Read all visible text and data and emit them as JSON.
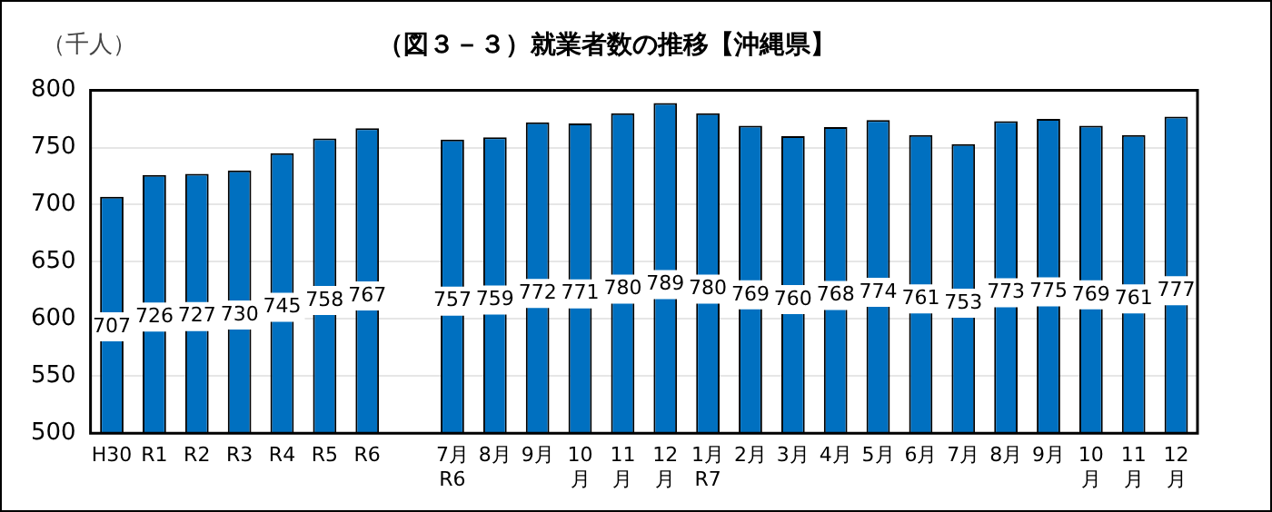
{
  "chart_data": {
    "type": "bar",
    "title": "（図３－３）就業者数の推移【沖縄県】",
    "ylabel": "（千人）",
    "categories": [
      "H30",
      "R1",
      "R2",
      "R3",
      "R4",
      "R5",
      "R6",
      null,
      "7月\nR6",
      "8月",
      "9月",
      "10\n月",
      "11\n月",
      "12\n月",
      "1月\nR7",
      "2月",
      "3月",
      "4月",
      "5月",
      "6月",
      "7月",
      "8月",
      "9月",
      "10\n月",
      "11\n月",
      "12\n月"
    ],
    "values": [
      707,
      726,
      727,
      730,
      745,
      758,
      767,
      null,
      757,
      759,
      772,
      771,
      780,
      789,
      780,
      769,
      760,
      768,
      774,
      761,
      753,
      773,
      775,
      769,
      761,
      777
    ],
    "color": "#0070c0",
    "ylim": [
      500,
      800
    ],
    "yticks": [
      500,
      550,
      600,
      650,
      700,
      750,
      800
    ],
    "grid": "y",
    "data_labels": true,
    "legend": false
  }
}
